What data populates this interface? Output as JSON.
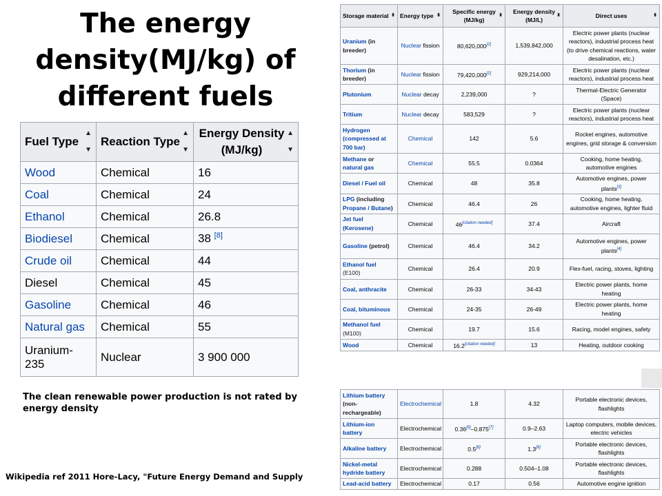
{
  "title_lines": [
    "The energy",
    "density(MJ/kg) of",
    "different fuels"
  ],
  "left_table": {
    "headers": [
      "Fuel Type",
      "Reaction Type",
      "Energy Density (MJ/kg)"
    ],
    "rows": [
      {
        "fuel": "Wood",
        "reaction": "Chemical",
        "density": "16",
        "ref": ""
      },
      {
        "fuel": "Coal",
        "reaction": "Chemical",
        "density": "24",
        "ref": ""
      },
      {
        "fuel": "Ethanol",
        "reaction": "Chemical",
        "density": "26.8",
        "ref": ""
      },
      {
        "fuel": "Biodiesel",
        "reaction": "Chemical",
        "density": "38",
        "ref": "[8]"
      },
      {
        "fuel": "Crude oil",
        "reaction": "Chemical",
        "density": "44",
        "ref": ""
      },
      {
        "fuel": "Diesel",
        "reaction": "Chemical",
        "density": "45",
        "ref": ""
      },
      {
        "fuel": "Gasoline",
        "reaction": "Chemical",
        "density": "46",
        "ref": ""
      },
      {
        "fuel": "Natural gas",
        "reaction": "Chemical",
        "density": "55",
        "ref": ""
      },
      {
        "fuel": "Uranium-235",
        "reaction": "Nuclear",
        "density": "3 900 000",
        "ref": ""
      }
    ]
  },
  "note": "The clean  renewable power production is not rated by energy density",
  "reference": "Wikipedia ref 2011  Hore-Lacy, \"Future Energy Demand and Supply",
  "right_table": {
    "headers": [
      "Storage material",
      "Energy type",
      "Specific energy (MJ/kg)",
      "Energy density (MJ/L)",
      "Direct uses"
    ],
    "rows_top": [
      {
        "m1": "Uranium",
        "m2": " (in breeder)",
        "e1": "Nuclear",
        "e2": " fission",
        "s": "80,620,000",
        "sr": "[2]",
        "d": "1,539,842,000",
        "dr": "",
        "u": "Electric power plants (nuclear reactors), industrial process heat (to drive chemical reactions, water desalination, etc.)",
        "ur": ""
      },
      {
        "m1": "Thorium",
        "m2": " (in breeder)",
        "e1": "Nuclear",
        "e2": " fission",
        "s": "79,420,000",
        "sr": "[2]",
        "d": "929,214,000",
        "dr": "",
        "u": "Electric power plants (nuclear reactors), industrial process heat",
        "ur": ""
      },
      {
        "m1": "Plutonium",
        "m2": "",
        "e1": "Nuclear",
        "e2": " decay",
        "s": "2,239,000",
        "sr": "",
        "d": "?",
        "dr": "",
        "u": "Thermal-Electric Generator (Space)",
        "ur": ""
      },
      {
        "m1": "Tritium",
        "m2": "",
        "e1": "Nuclear",
        "e2": " decay",
        "s": "583,529",
        "sr": "",
        "d": "?",
        "dr": "",
        "u": "Electric power plants (nuclear reactors), industrial process heat",
        "ur": ""
      },
      {
        "m1": "Hydrogen (compressed at 700 bar)",
        "m2": "",
        "e1": "Chemical",
        "e2": "",
        "s": "142",
        "sr": "",
        "d": "5.6",
        "dr": "",
        "u": "Rocket engines, automotive engines, grid storage & conversion",
        "ur": ""
      },
      {
        "m1": "Methane",
        "m2": " or ",
        "m3": "natural gas",
        "e1": "Chemical",
        "e2": "",
        "s": "55.5",
        "sr": "",
        "d": "0.0364",
        "dr": "",
        "u": "Cooking, home heating, automotive engines",
        "ur": ""
      },
      {
        "m1": "Diesel / Fuel oil",
        "m2": "",
        "e1": "",
        "e2": "Chemical",
        "s": "48",
        "sr": "",
        "d": "35.8",
        "dr": "",
        "u": "Automotive engines, power plants",
        "ur": "[3]"
      },
      {
        "m1": "LPG",
        "m2": " (including ",
        "m3": "Propane / Butane",
        "m4": ")",
        "e1": "",
        "e2": "Chemical",
        "s": "46.4",
        "sr": "",
        "d": "26",
        "dr": "",
        "u": "Cooking, home heating, automotive engines, lighter fluid",
        "ur": ""
      },
      {
        "m1": "Jet fuel (Kerosene)",
        "m2": "",
        "e1": "",
        "e2": "Chemical",
        "s": "46",
        "sr": "[citation needed]",
        "d": "37.4",
        "dr": "",
        "u": "Aircraft",
        "ur": ""
      },
      {
        "m1": "Gasoline",
        "m2": " (petrol)",
        "e1": "",
        "e2": "Chemical",
        "s": "46.4",
        "sr": "",
        "d": "34.2",
        "dr": "",
        "u": "Automotive engines, power plants",
        "ur": "[4]"
      },
      {
        "m1": "Ethanol fuel",
        "m2": "",
        "m5": "(E100)",
        "e1": "",
        "e2": "Chemical",
        "s": "26.4",
        "sr": "",
        "d": "20.9",
        "dr": "",
        "u": "Flex-fuel, racing, stoves, lighting",
        "ur": ""
      },
      {
        "m1": "Coal, anthracite",
        "m2": "",
        "e1": "",
        "e2": "Chemical",
        "s": "26-33",
        "sr": "",
        "d": "34-43",
        "dr": "",
        "u": "Electric power plants, home heating",
        "ur": ""
      },
      {
        "m1": "Coal, bituminous",
        "m2": "",
        "e1": "",
        "e2": "Chemical",
        "s": "24-35",
        "sr": "",
        "d": "26-49",
        "dr": "",
        "u": "Electric power plants, home heating",
        "ur": ""
      },
      {
        "m1": "Methanol fuel",
        "m2": "",
        "m5": "(M100)",
        "e1": "",
        "e2": "Chemical",
        "s": "19.7",
        "sr": "",
        "d": "15.6",
        "dr": "",
        "u": "Racing, model engines, safety",
        "ur": ""
      },
      {
        "m1": "Wood",
        "m2": "",
        "e1": "",
        "e2": "Chemical",
        "s": "16.2",
        "sr": "[citation needed]",
        "d": "13",
        "dr": "",
        "u": "Heating, outdoor cooking",
        "ur": ""
      }
    ],
    "rows_bottom": [
      {
        "m1": "Lithium battery",
        "m2": " (non-rechargeable)",
        "e1": "Electrochemical",
        "e2": "",
        "s": "1.8",
        "sr": "",
        "d": "4.32",
        "dr": "",
        "u": "Portable electronic devices, flashlights",
        "ur": ""
      },
      {
        "m1": "Lithium-ion battery",
        "m2": "",
        "e1": "",
        "e2": "Electrochemical",
        "s": "0.36",
        "sr": "[6]",
        "s2": "–0.875",
        "sr2": "[7]",
        "d": "0.9–2.63",
        "dr": "",
        "u": "Laptop computers, mobile devices, electric vehicles",
        "ur": ""
      },
      {
        "m1": "Alkaline battery",
        "m2": "",
        "e1": "",
        "e2": "Electrochemical",
        "s": "0.5",
        "sr": "[8]",
        "d": "1.3",
        "dr": "[8]",
        "u": "Portable electronic devices, flashlights",
        "ur": ""
      },
      {
        "m1": "Nickel-metal hydride battery",
        "m2": "",
        "e1": "",
        "e2": "Electrochemical",
        "s": "0.288",
        "sr": "",
        "d": "0.504–1.08",
        "dr": "",
        "u": "Portable electronic devices, flashlights",
        "ur": ""
      },
      {
        "m1": "Lead-acid battery",
        "m2": "",
        "e1": "",
        "e2": "Electrochemical",
        "s": "0.17",
        "sr": "",
        "d": "0.56",
        "dr": "",
        "u": "Automotive engine ignition",
        "ur": ""
      }
    ]
  },
  "colors": {
    "link": "#0645ad",
    "header_bg": "#eaecf0",
    "cell_bg": "#f8f9fa",
    "border": "#a2a9b1"
  },
  "icons": {
    "sort": "sort-arrows-icon"
  }
}
